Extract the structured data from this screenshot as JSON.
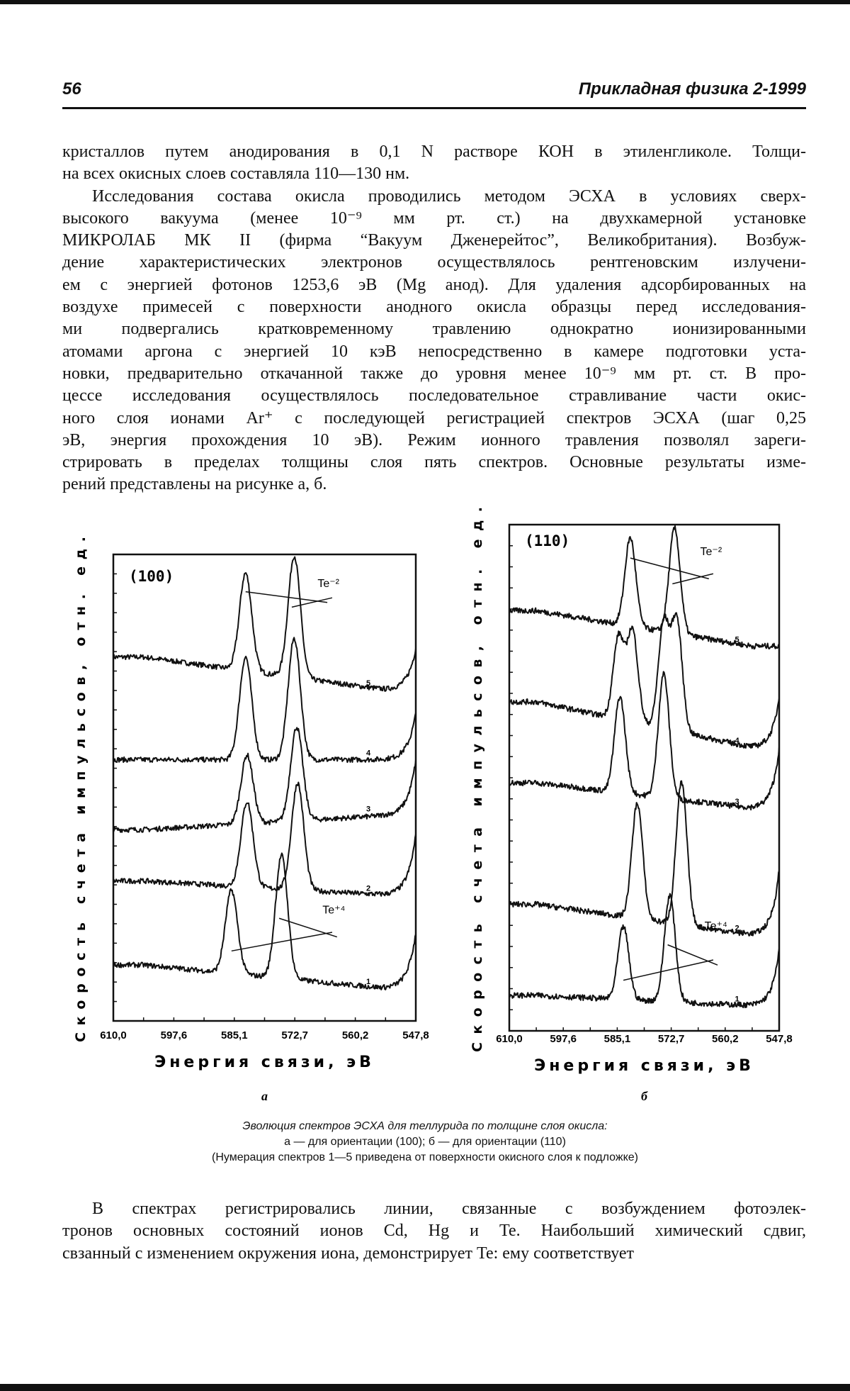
{
  "header": {
    "page_number": "56",
    "journal": "Прикладная физика 2-1999"
  },
  "paragraph1": [
    "кристаллов путем анодирования в 0,1 N растворе КОН в этиленгликоле. Толщи-",
    "на всех окисных слоев составляла 110—130 нм."
  ],
  "paragraph2": [
    "Исследования состава окисла проводились методом ЭСХА в условиях сверх-",
    "высокого вакуума (менее 10⁻⁹ мм рт. ст.) на двухкамерной установке",
    "МИКРОЛАБ МК II (фирма “Вакуум Дженерейтос”, Великобритания). Возбуж-",
    "дение характеристических электронов осуществлялось рентгеновским излучени-",
    "ем с энергией фотонов 1253,6 эВ (Mg анод). Для удаления адсорбированных на",
    "воздухе примесей с поверхности анодного окисла образцы перед исследования-",
    "ми подвергались кратковременному травлению однократно ионизированными",
    "атомами аргона с энергией 10 кэВ непосредственно в камере подготовки уста-",
    "новки, предварительно откачанной также до уровня менее 10⁻⁹ мм рт. ст. В про-",
    "цессе исследования осуществлялось последовательное стравливание части окис-",
    "ного слоя ионами Ar⁺ с последующей регистрацией спектров ЭСХА (шаг 0,25",
    "эВ, энергия прохождения 10 эВ). Режим ионного травления позволял зареги-",
    "стрировать в пределах толщины слоя пять спектров. Основные результаты изме-",
    "рений представлены на рисунке а, б."
  ],
  "figure_caption": [
    "Эволюция спектров ЭСХА для теллурида по толщине слоя окисла:",
    "а — для ориентации (100); б — для ориентации (110)",
    "(Нумерация спектров 1—5 приведена от поверхности окисного слоя к подложке)"
  ],
  "paragraph3": [
    "В спектрах регистрировались линии, связанные с возбуждением фотоэлек-",
    "тронов основных состояний ионов Cd, Hg и Te. Наибольший химический сдвиг,",
    "свзанный с изменением окружения иона, демонстрирует Te: ему соответствует"
  ],
  "chart_data": [
    {
      "type": "line",
      "panel_label": "(100)",
      "sublabel": "а",
      "xlabel": "Энергия связи, эВ",
      "ylabel": "Скорость счета импульсов, отн. ед.",
      "xlim": [
        610.0,
        547.8
      ],
      "xticks": [
        "610,0",
        "597,6",
        "585,1",
        "572,7",
        "560,2",
        "547,8"
      ],
      "ylim": [
        0,
        100
      ],
      "grid": false,
      "annotations": [
        {
          "text": "Te⁻²",
          "energy": 568,
          "level": 93
        },
        {
          "text": "Te⁺⁴",
          "energy": 567,
          "level": 23
        }
      ],
      "series": [
        {
          "name": "5",
          "base": 78,
          "tail": 71,
          "end": 80,
          "peaks": [
            [
              582.8,
              96
            ],
            [
              572.8,
              99.7
            ]
          ]
        },
        {
          "name": "4",
          "base": 56,
          "tail": 56,
          "end": 66,
          "peaks": [
            [
              582.8,
              78
            ],
            [
              572.8,
              82
            ]
          ]
        },
        {
          "name": "3",
          "base": 41,
          "tail": 44,
          "end": 56,
          "peaks": [
            [
              582.5,
              57
            ],
            [
              572.3,
              63
            ]
          ]
        },
        {
          "name": "2",
          "base": 30,
          "tail": 27,
          "end": 40,
          "peaks": [
            [
              582.5,
              47
            ],
            [
              572.1,
              51
            ]
          ]
        },
        {
          "name": "1",
          "base": 12,
          "tail": 7,
          "end": 19,
          "peaks": [
            [
              585.7,
              28
            ],
            [
              575.4,
              35.5
            ]
          ]
        }
      ]
    },
    {
      "type": "line",
      "panel_label": "(110)",
      "sublabel": "б",
      "xlabel": "Энергия связи, эВ",
      "ylabel": "Скорость счета импульсов, отн. ед.",
      "xlim": [
        610.0,
        547.8
      ],
      "xticks": [
        "610,0",
        "597,6",
        "585,1",
        "572,7",
        "560,2",
        "547,8"
      ],
      "ylim": [
        0,
        100
      ],
      "grid": false,
      "annotations": [
        {
          "text": "Te⁻²",
          "energy": 566,
          "level": 94
        },
        {
          "text": "Te⁺⁴",
          "energy": 565,
          "level": 20
        }
      ],
      "series": [
        {
          "name": "5",
          "base": 83,
          "tail": 76,
          "end": 76,
          "peaks": [
            [
              582.1,
              97.4
            ],
            [
              571.9,
              99.3
            ]
          ]
        },
        {
          "name": "4",
          "base": 65,
          "tail": 56,
          "end": 66,
          "peaks": [
            [
              584.8,
              77.8
            ],
            [
              581.6,
              79
            ],
            [
              574.4,
              80.4
            ],
            [
              571.4,
              81
            ]
          ]
        },
        {
          "name": "3",
          "base": 49,
          "tail": 44,
          "end": 56,
          "peaks": [
            [
              584.5,
              66
            ],
            [
              574.4,
              70.6
            ]
          ]
        },
        {
          "name": "2",
          "base": 25,
          "tail": 19,
          "end": 32,
          "peaks": [
            [
              580.5,
              45
            ],
            [
              570.3,
              49
            ]
          ]
        },
        {
          "name": "1",
          "base": 7,
          "tail": 5,
          "end": 16,
          "peaks": [
            [
              583.7,
              20.6
            ],
            [
              573.0,
              26.8
            ]
          ]
        }
      ]
    }
  ]
}
